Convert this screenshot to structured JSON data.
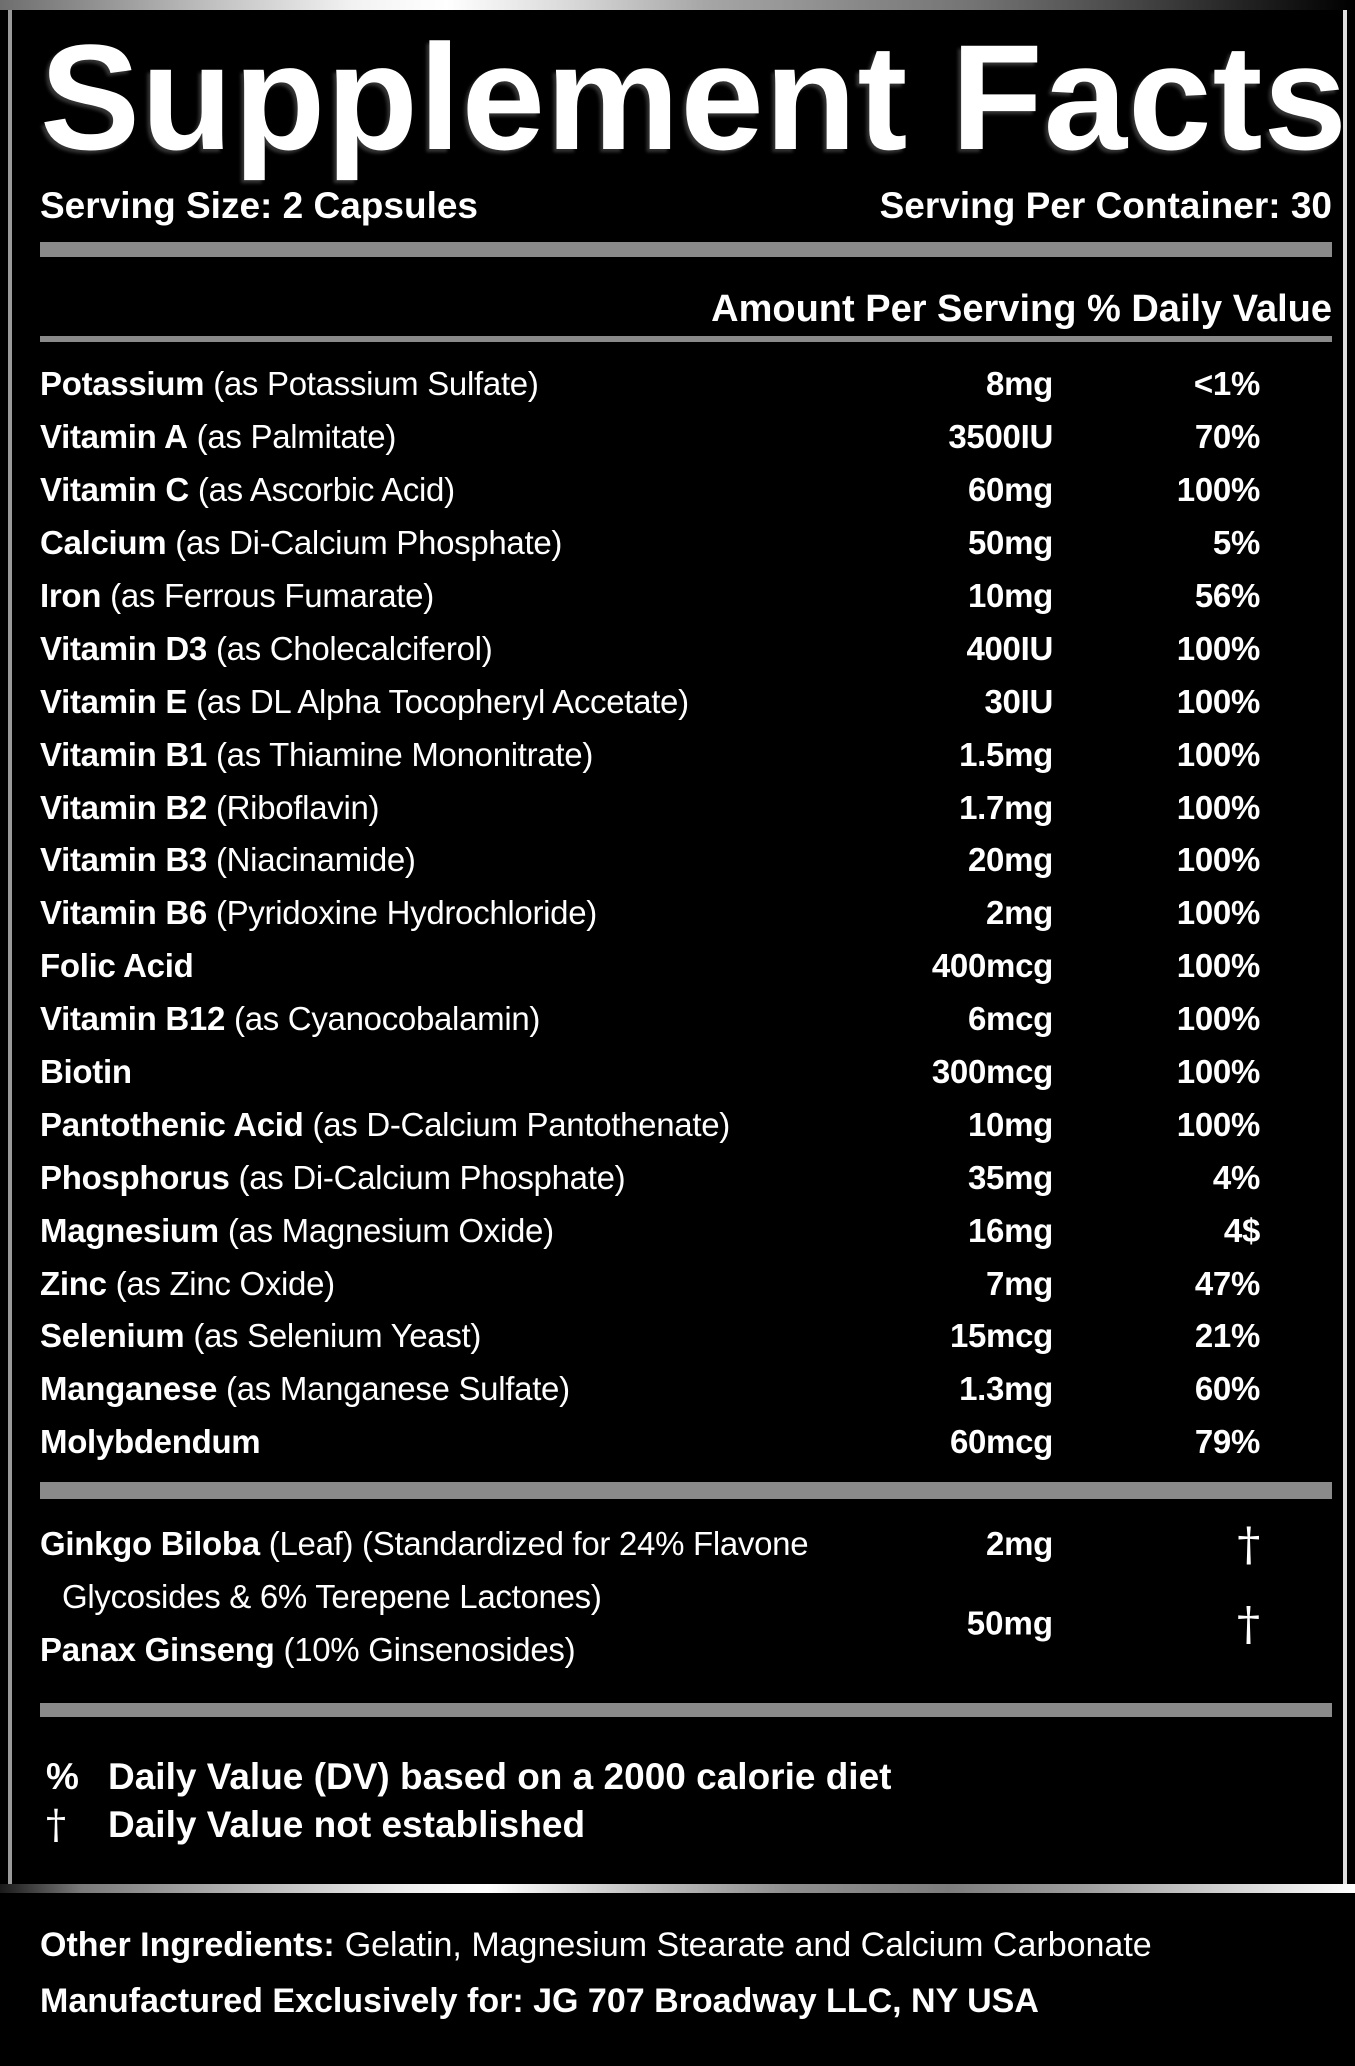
{
  "label": {
    "title": "Supplement Facts",
    "serving_size": "Serving Size: 2 Capsules",
    "serving_per_container": "Serving Per Container: 30",
    "column_header": "Amount Per Serving % Daily Value"
  },
  "nutrients": [
    {
      "name": "Potassium",
      "detail": "(as Potassium Sulfate)",
      "amount": "8mg",
      "dv": "<1%"
    },
    {
      "name": "Vitamin A",
      "detail": "(as Palmitate)",
      "amount": "3500IU",
      "dv": "70%"
    },
    {
      "name": "Vitamin C",
      "detail": "(as Ascorbic Acid)",
      "amount": "60mg",
      "dv": "100%"
    },
    {
      "name": "Calcium",
      "detail": "(as Di-Calcium Phosphate)",
      "amount": "50mg",
      "dv": "5%"
    },
    {
      "name": "Iron",
      "detail": "(as Ferrous Fumarate)",
      "amount": "10mg",
      "dv": "56%"
    },
    {
      "name": "Vitamin D3",
      "detail": "(as Cholecalciferol)",
      "amount": "400IU",
      "dv": "100%"
    },
    {
      "name": "Vitamin E",
      "detail": "(as DL Alpha Tocopheryl Accetate)",
      "amount": "30IU",
      "dv": "100%"
    },
    {
      "name": "Vitamin B1",
      "detail": "(as Thiamine Mononitrate)",
      "amount": "1.5mg",
      "dv": "100%"
    },
    {
      "name": "Vitamin B2",
      "detail": "(Riboflavin)",
      "amount": "1.7mg",
      "dv": "100%"
    },
    {
      "name": "Vitamin B3",
      "detail": "(Niacinamide)",
      "amount": "20mg",
      "dv": "100%"
    },
    {
      "name": "Vitamin B6",
      "detail": "(Pyridoxine Hydrochloride)",
      "amount": "2mg",
      "dv": "100%"
    },
    {
      "name": "Folic Acid",
      "detail": "",
      "amount": "400mcg",
      "dv": "100%"
    },
    {
      "name": "Vitamin B12",
      "detail": "(as Cyanocobalamin)",
      "amount": "6mcg",
      "dv": "100%"
    },
    {
      "name": "Biotin",
      "detail": "",
      "amount": "300mcg",
      "dv": "100%"
    },
    {
      "name": "Pantothenic Acid",
      "detail": "(as D-Calcium Pantothenate)",
      "amount": "10mg",
      "dv": "100%"
    },
    {
      "name": "Phosphorus",
      "detail": "(as Di-Calcium Phosphate)",
      "amount": "35mg",
      "dv": "4%"
    },
    {
      "name": "Magnesium",
      "detail": "(as Magnesium Oxide)",
      "amount": "16mg",
      "dv": "4$"
    },
    {
      "name": "Zinc",
      "detail": "(as Zinc Oxide)",
      "amount": "7mg",
      "dv": "47%"
    },
    {
      "name": "Selenium",
      "detail": "(as Selenium Yeast)",
      "amount": "15mcg",
      "dv": "21%"
    },
    {
      "name": "Manganese",
      "detail": "(as Manganese Sulfate)",
      "amount": "1.3mg",
      "dv": "60%"
    },
    {
      "name": "Molybdendum",
      "detail": "",
      "amount": "60mcg",
      "dv": "79%"
    }
  ],
  "botanicals": {
    "row1_name": "Ginkgo Biloba",
    "row1_detail": "(Leaf) (Standardized for 24% Flavone",
    "row1_amount": "2mg",
    "row1_dv": "†",
    "row2_text": "Glycosides & 6% Terepene Lactones)",
    "row3_amount": "50mg",
    "row3_dv": "†",
    "row4_name": "Panax Ginseng",
    "row4_detail": "(10% Ginsenosides)"
  },
  "footnotes": [
    {
      "symbol": "%",
      "text": "Daily Value (DV) based on a 2000 calorie diet"
    },
    {
      "symbol": "†",
      "text": "Daily Value not established"
    }
  ],
  "other_ingredients": {
    "label": "Other Ingredients:",
    "text": "Gelatin, Magnesium Stearate and Calcium Carbonate"
  },
  "manufactured": "Manufactured Exclusively for: JG 707 Broadway LLC, NY USA",
  "colors": {
    "background": "#000000",
    "text": "#ffffff",
    "divider": "#8a8a8a",
    "frame_silver": "#c0c0c0"
  }
}
